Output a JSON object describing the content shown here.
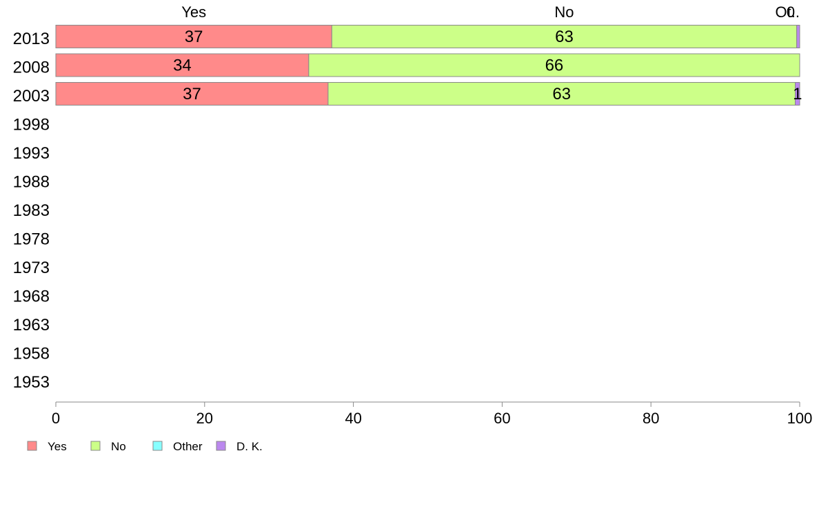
{
  "chart_data": {
    "type": "bar",
    "orientation": "horizontal",
    "stacked": true,
    "categories": [
      "2013",
      "2008",
      "2003",
      "1998",
      "1993",
      "1988",
      "1983",
      "1978",
      "1973",
      "1968",
      "1963",
      "1958",
      "1953"
    ],
    "series": [
      {
        "name": "Yes",
        "color": "#ff8a8a",
        "values": [
          37.1,
          34.0,
          36.6,
          null,
          null,
          null,
          null,
          null,
          null,
          null,
          null,
          null,
          null
        ]
      },
      {
        "name": "No",
        "color": "#ccff88",
        "values": [
          62.5,
          66.0,
          62.8,
          null,
          null,
          null,
          null,
          null,
          null,
          null,
          null,
          null,
          null
        ]
      },
      {
        "name": "Other",
        "color": "#88ffff",
        "values": [
          0.0,
          0.0,
          0.0,
          null,
          null,
          null,
          null,
          null,
          null,
          null,
          null,
          null,
          null
        ]
      },
      {
        "name": "D. K.",
        "color": "#bb88ee",
        "values": [
          0.4,
          0.0,
          0.6,
          null,
          null,
          null,
          null,
          null,
          null,
          null,
          null,
          null,
          null
        ]
      }
    ],
    "bar_labels": [
      [
        "37",
        "63",
        "",
        ""
      ],
      [
        "34",
        "66",
        "",
        ""
      ],
      [
        "37",
        "63",
        "",
        "1"
      ],
      [],
      [],
      [],
      [],
      [],
      [],
      [],
      [],
      [],
      []
    ],
    "top_labels": [
      "Yes",
      "No",
      "0",
      "Ot.."
    ],
    "xlim": [
      0,
      100
    ],
    "xticks": [
      "0",
      "20",
      "40",
      "60",
      "80",
      "100"
    ],
    "legend": [
      "Yes",
      "No",
      "Other",
      "D. K."
    ],
    "legend_position": "bottom-left",
    "grid": false
  }
}
